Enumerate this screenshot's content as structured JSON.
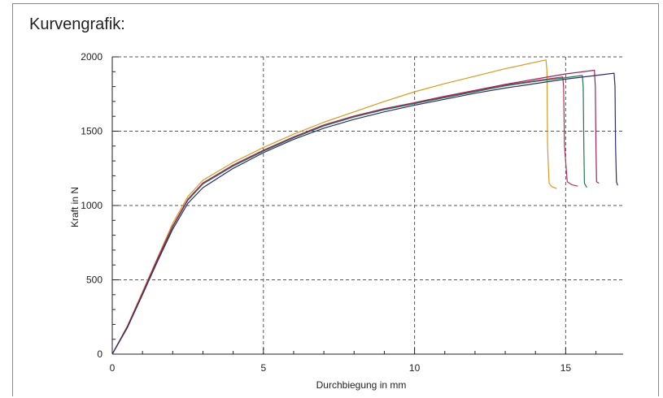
{
  "panel": {
    "title": "Kurvengrafik:"
  },
  "chart_data": {
    "type": "line",
    "title": "Kurvengrafik:",
    "xlabel": "Durchbiegung in mm",
    "ylabel": "Kraft in N",
    "xlim": [
      0,
      16.9
    ],
    "ylim": [
      0,
      2000
    ],
    "xticks": [
      0,
      5,
      10,
      15
    ],
    "yticks": [
      0,
      500,
      1000,
      1500,
      2000
    ],
    "xticks_minor_step": 1,
    "yticks_minor_step": 100,
    "grid": true,
    "grid_style": "dashed",
    "legend": "none",
    "series": [
      {
        "color": "#d99a22",
        "points": [
          [
            0,
            0
          ],
          [
            0.5,
            190
          ],
          [
            1,
            420
          ],
          [
            1.5,
            650
          ],
          [
            2,
            880
          ],
          [
            2.5,
            1060
          ],
          [
            3,
            1170
          ],
          [
            4,
            1290
          ],
          [
            5,
            1390
          ],
          [
            6,
            1480
          ],
          [
            7,
            1560
          ],
          [
            8,
            1630
          ],
          [
            9,
            1700
          ],
          [
            10,
            1765
          ],
          [
            11,
            1820
          ],
          [
            12,
            1870
          ],
          [
            13,
            1920
          ],
          [
            14.35,
            1980
          ],
          [
            14.38,
            1900
          ],
          [
            14.4,
            1400
          ],
          [
            14.45,
            1150
          ],
          [
            14.55,
            1125
          ],
          [
            14.7,
            1115
          ]
        ]
      },
      {
        "color": "#b2335e",
        "points": [
          [
            0,
            0
          ],
          [
            0.5,
            185
          ],
          [
            1,
            410
          ],
          [
            1.5,
            640
          ],
          [
            2,
            860
          ],
          [
            2.5,
            1040
          ],
          [
            3,
            1150
          ],
          [
            4,
            1270
          ],
          [
            5,
            1370
          ],
          [
            6,
            1460
          ],
          [
            7,
            1540
          ],
          [
            8,
            1600
          ],
          [
            9,
            1650
          ],
          [
            10,
            1690
          ],
          [
            11,
            1730
          ],
          [
            12,
            1770
          ],
          [
            13,
            1810
          ],
          [
            14,
            1840
          ],
          [
            14.9,
            1865
          ],
          [
            14.93,
            1800
          ],
          [
            14.96,
            1400
          ],
          [
            15.05,
            1160
          ],
          [
            15.2,
            1140
          ],
          [
            15.4,
            1130
          ]
        ]
      },
      {
        "color": "#1e7a4a",
        "points": [
          [
            0,
            0
          ],
          [
            0.5,
            182
          ],
          [
            1,
            405
          ],
          [
            1.5,
            635
          ],
          [
            2,
            855
          ],
          [
            2.5,
            1035
          ],
          [
            3,
            1145
          ],
          [
            4,
            1265
          ],
          [
            5,
            1365
          ],
          [
            6,
            1455
          ],
          [
            7,
            1535
          ],
          [
            8,
            1595
          ],
          [
            9,
            1645
          ],
          [
            10,
            1685
          ],
          [
            11,
            1725
          ],
          [
            12,
            1765
          ],
          [
            13,
            1805
          ],
          [
            14,
            1835
          ],
          [
            15,
            1860
          ],
          [
            15.55,
            1875
          ],
          [
            15.58,
            1800
          ],
          [
            15.6,
            1400
          ],
          [
            15.62,
            1150
          ],
          [
            15.7,
            1120
          ]
        ]
      },
      {
        "color": "#9c2560",
        "points": [
          [
            0,
            0
          ],
          [
            0.5,
            185
          ],
          [
            1,
            412
          ],
          [
            1.5,
            642
          ],
          [
            2,
            862
          ],
          [
            2.5,
            1042
          ],
          [
            3,
            1152
          ],
          [
            4,
            1272
          ],
          [
            5,
            1372
          ],
          [
            6,
            1462
          ],
          [
            7,
            1542
          ],
          [
            8,
            1602
          ],
          [
            9,
            1652
          ],
          [
            10,
            1692
          ],
          [
            11,
            1735
          ],
          [
            12,
            1775
          ],
          [
            13,
            1815
          ],
          [
            14,
            1850
          ],
          [
            15,
            1885
          ],
          [
            15.95,
            1910
          ],
          [
            15.98,
            1800
          ],
          [
            16,
            1400
          ],
          [
            16.02,
            1160
          ],
          [
            16.1,
            1150
          ]
        ]
      },
      {
        "color": "#2c2e6e",
        "points": [
          [
            0,
            0
          ],
          [
            0.5,
            178
          ],
          [
            1,
            400
          ],
          [
            1.5,
            625
          ],
          [
            2,
            840
          ],
          [
            2.5,
            1015
          ],
          [
            3,
            1120
          ],
          [
            4,
            1250
          ],
          [
            5,
            1355
          ],
          [
            6,
            1445
          ],
          [
            7,
            1520
          ],
          [
            8,
            1580
          ],
          [
            9,
            1630
          ],
          [
            10,
            1675
          ],
          [
            11,
            1715
          ],
          [
            12,
            1755
          ],
          [
            13,
            1790
          ],
          [
            14,
            1820
          ],
          [
            15,
            1850
          ],
          [
            16,
            1875
          ],
          [
            16.6,
            1890
          ],
          [
            16.63,
            1800
          ],
          [
            16.65,
            1400
          ],
          [
            16.68,
            1160
          ],
          [
            16.72,
            1135
          ]
        ]
      }
    ]
  }
}
